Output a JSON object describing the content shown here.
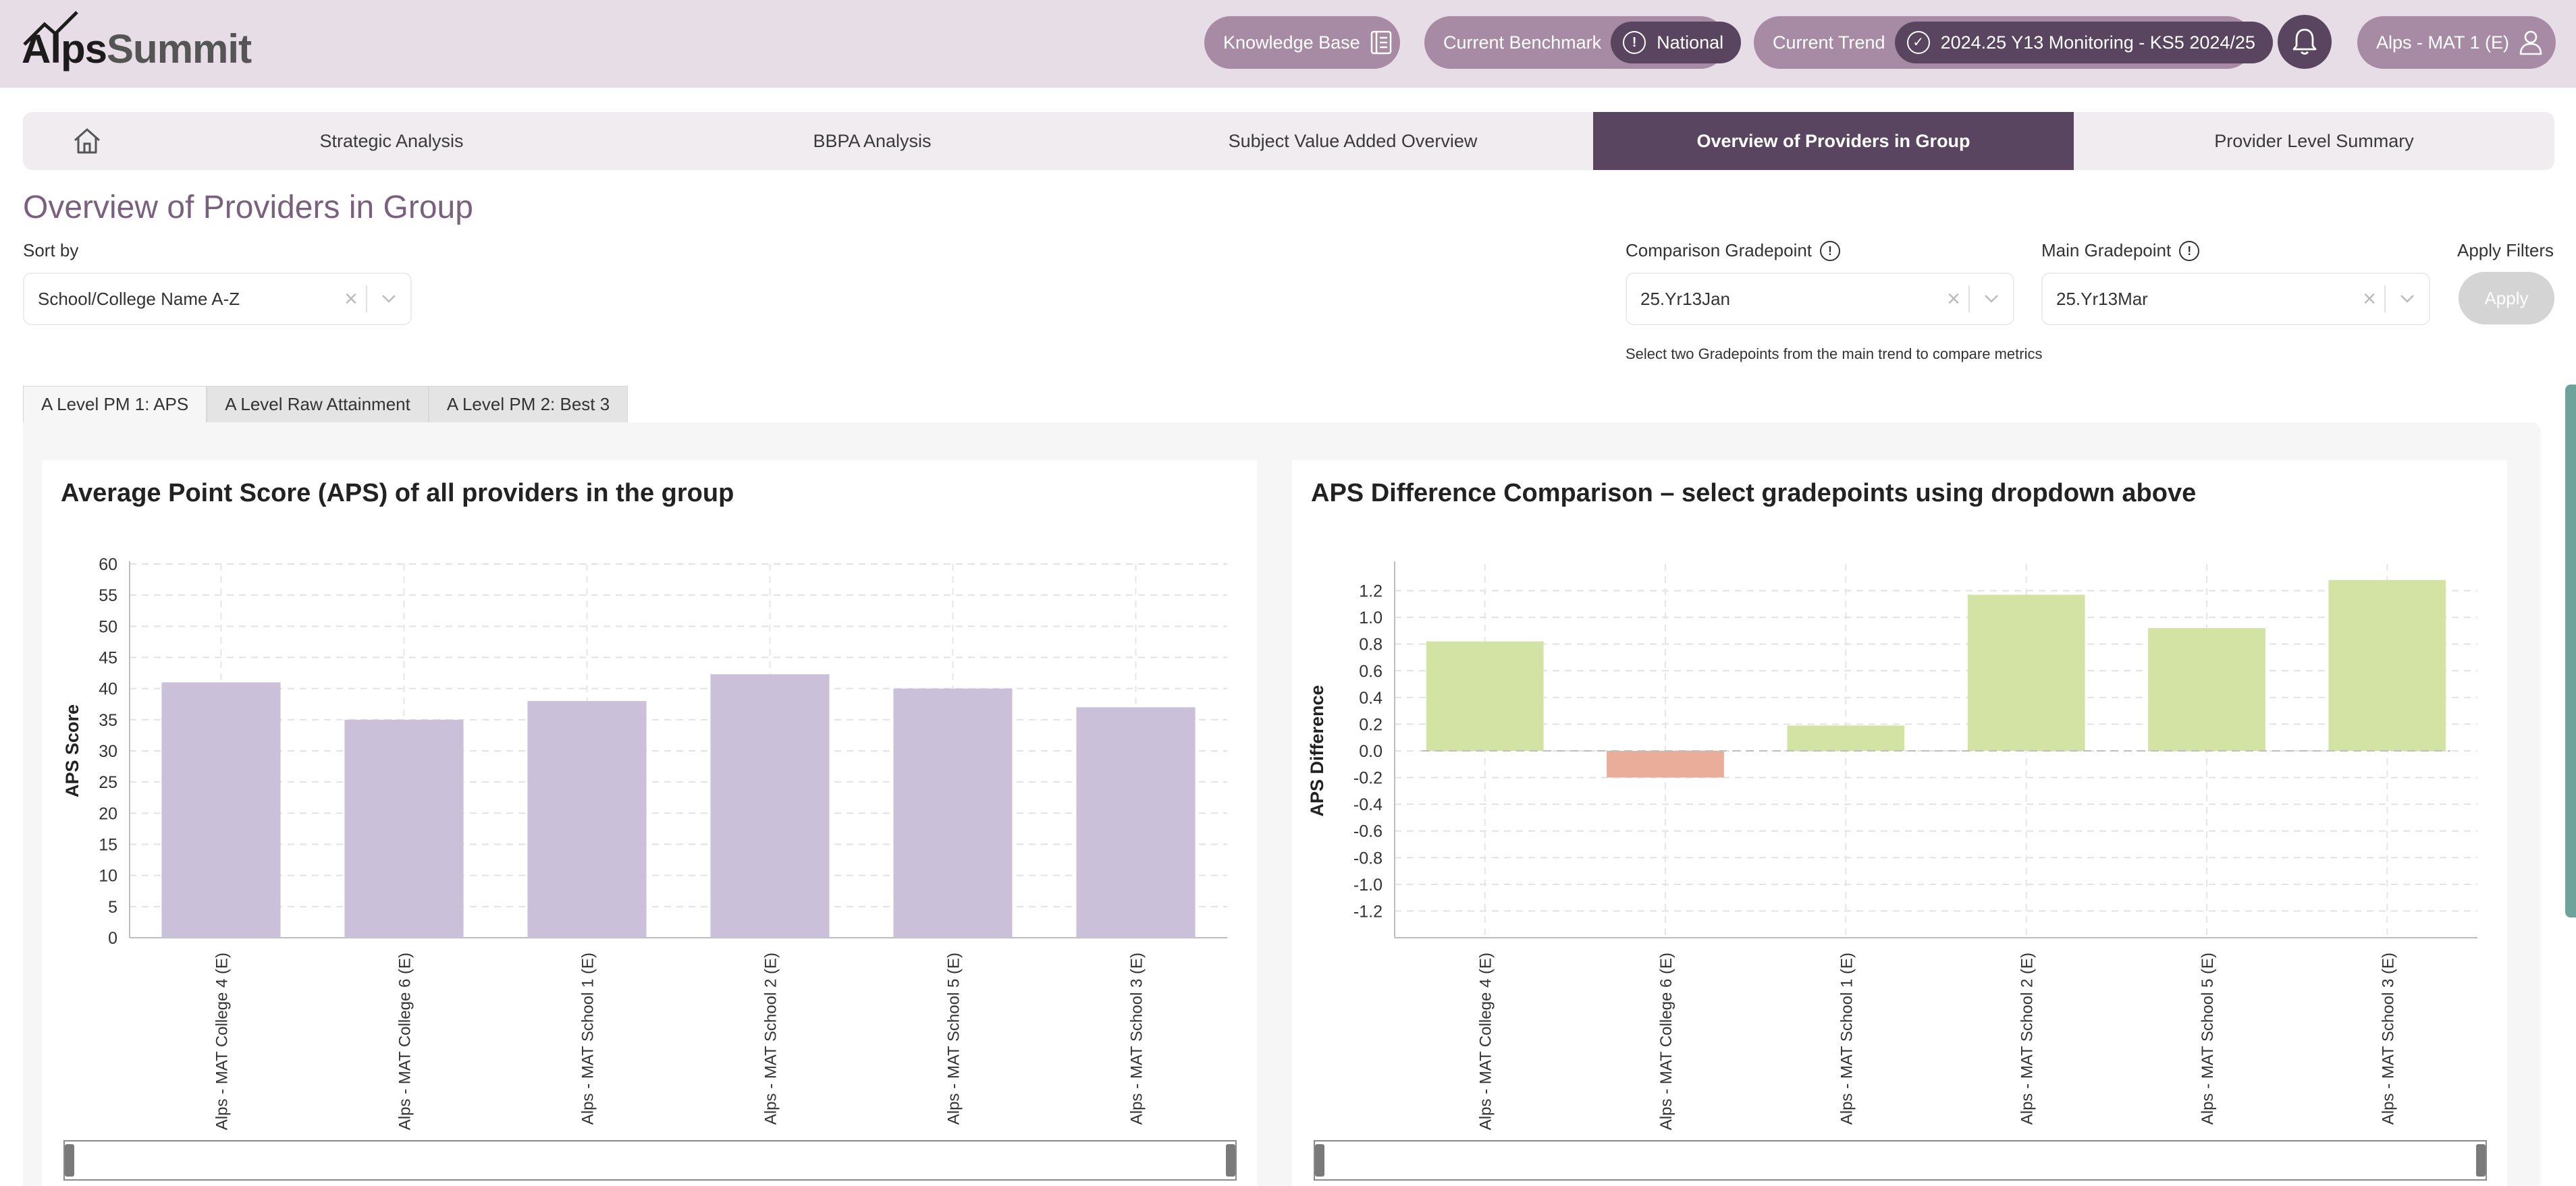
{
  "header": {
    "logo": {
      "part1": "Alps",
      "part2": "Summit"
    },
    "knowledge_base": "Knowledge Base",
    "benchmark": {
      "label": "Current Benchmark",
      "value": "National"
    },
    "trend": {
      "label": "Current Trend",
      "value": "2024.25 Y13 Monitoring - KS5 2024/25"
    },
    "user": "Alps - MAT 1 (E)"
  },
  "nav": {
    "items": [
      {
        "label": "Strategic Analysis"
      },
      {
        "label": "BBPA Analysis"
      },
      {
        "label": "Subject Value Added Overview"
      },
      {
        "label": "Overview of Providers in Group"
      },
      {
        "label": "Provider Level Summary"
      }
    ]
  },
  "page_title": "Overview of Providers in Group",
  "filters": {
    "sort_by": {
      "label": "Sort by",
      "value": "School/College Name A-Z"
    },
    "comparison": {
      "label": "Comparison Gradepoint",
      "value": "25.Yr13Jan"
    },
    "main": {
      "label": "Main Gradepoint",
      "value": "25.Yr13Mar"
    },
    "apply": {
      "label": "Apply Filters",
      "button": "Apply"
    },
    "hint": "Select two Gradepoints from the main trend to compare metrics"
  },
  "tabs": [
    {
      "label": "A Level PM 1: APS"
    },
    {
      "label": "A Level Raw Attainment"
    },
    {
      "label": "A Level PM 2: Best 3"
    }
  ],
  "colors": {
    "accent": "#5a4560",
    "pill": "#a78ba4",
    "bar_aps": "#cbc0d9",
    "bar_positive": "#d3e3a4",
    "bar_negative": "#e9ad9a"
  },
  "chart_data": [
    {
      "type": "bar",
      "title": "Average Point Score (APS) of all providers in the group",
      "ylabel": "APS Score",
      "xlabel": "",
      "categories": [
        "Alps - MAT College 4 (E)",
        "Alps - MAT College 6 (E)",
        "Alps - MAT School 1 (E)",
        "Alps - MAT School 2 (E)",
        "Alps - MAT School 5 (E)",
        "Alps - MAT School 3 (E)"
      ],
      "values": [
        41,
        35,
        38,
        42.3,
        40,
        37
      ],
      "ylim": [
        0,
        60
      ],
      "yticks": [
        0,
        5,
        10,
        15,
        20,
        25,
        30,
        35,
        40,
        45,
        50,
        55,
        60
      ],
      "grid": true
    },
    {
      "type": "bar",
      "title": "APS Difference Comparison – select gradepoints using dropdown above",
      "ylabel": "APS Difference",
      "xlabel": "",
      "categories": [
        "Alps - MAT College 4 (E)",
        "Alps - MAT College 6 (E)",
        "Alps - MAT School 1 (E)",
        "Alps - MAT School 2 (E)",
        "Alps - MAT School 5 (E)",
        "Alps - MAT School 3 (E)"
      ],
      "values": [
        0.82,
        -0.2,
        0.19,
        1.17,
        0.92,
        1.28
      ],
      "ylim": [
        -1.4,
        1.4
      ],
      "yticks": [
        -1.2,
        -1.0,
        -0.8,
        -0.6,
        -0.4,
        -0.2,
        0.0,
        0.2,
        0.4,
        0.6,
        0.8,
        1.0,
        1.2
      ],
      "tick_decimals": 1,
      "grid": true
    }
  ]
}
